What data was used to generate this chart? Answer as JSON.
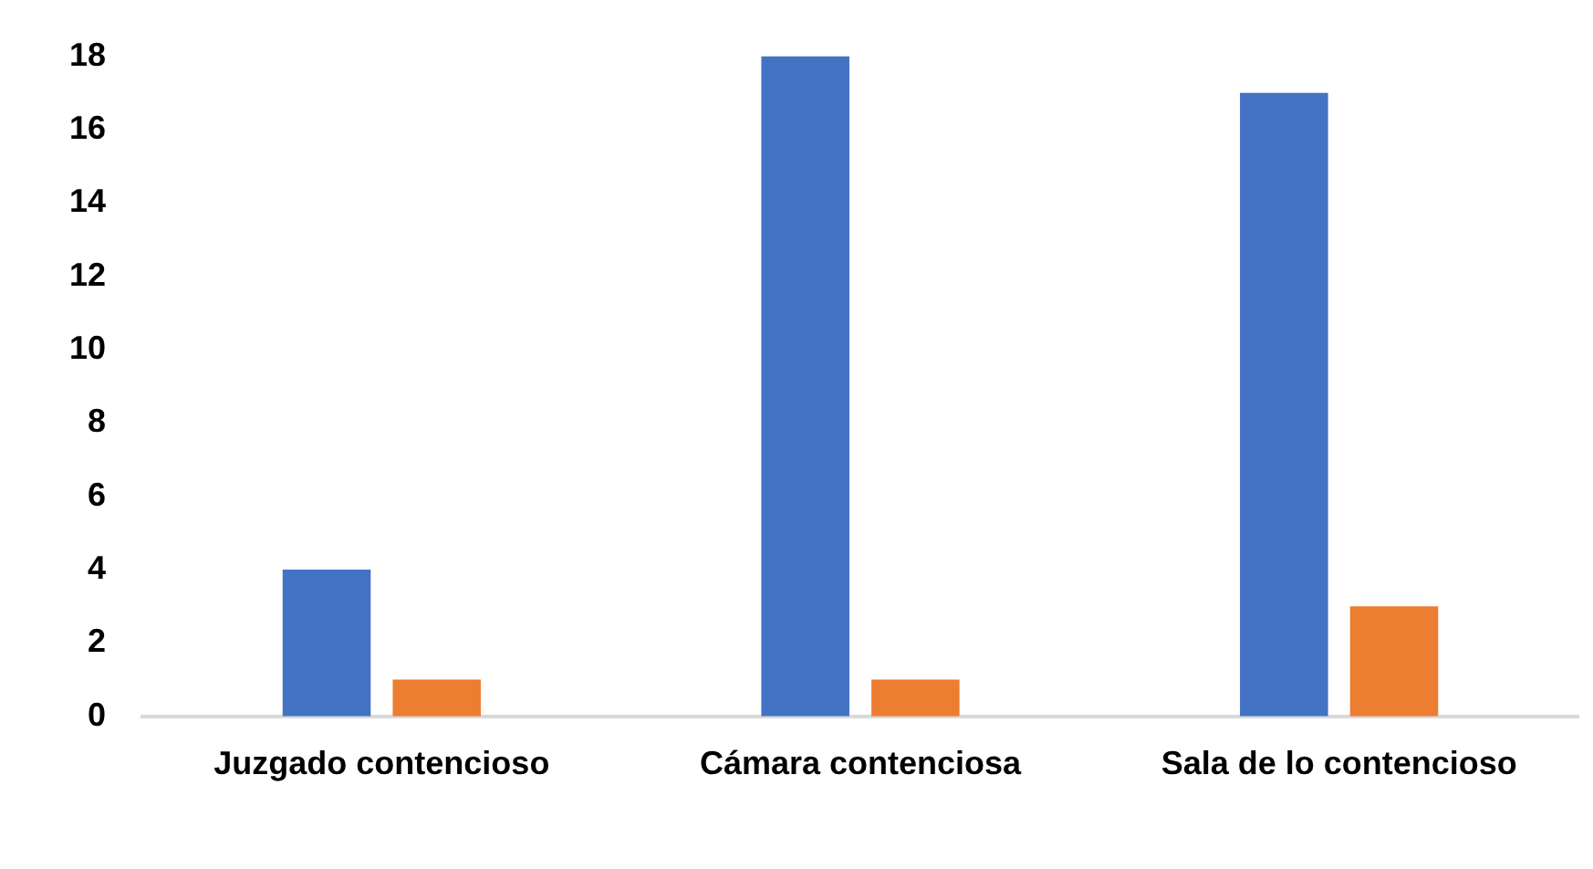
{
  "chart_data": {
    "type": "bar",
    "categories": [
      "Juzgado contencioso",
      "Cámara contenciosa",
      "Sala de lo contencioso"
    ],
    "series": [
      {
        "color": "#4472c4",
        "values": [
          4,
          18,
          17
        ]
      },
      {
        "color": "#ed7d31",
        "values": [
          1,
          1,
          3
        ]
      }
    ],
    "ylim": [
      0,
      18
    ],
    "yticks": [
      0,
      2,
      4,
      6,
      8,
      10,
      12,
      14,
      16,
      18
    ],
    "grid": false,
    "legend": false
  }
}
